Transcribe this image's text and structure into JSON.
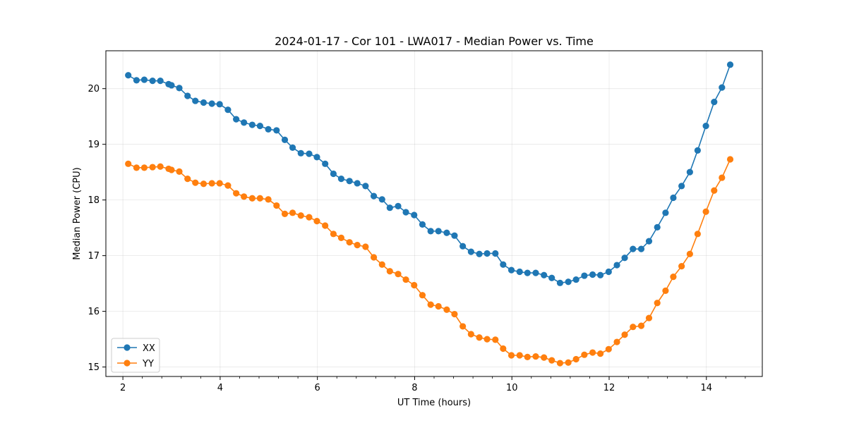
{
  "chart_data": {
    "type": "line",
    "title": "2024-01-17 - Cor 101 - LWA017 - Median Power vs. Time",
    "xlabel": "UT Time (hours)",
    "ylabel": "Median Power (CPU)",
    "xlim": [
      1.65,
      15.15
    ],
    "ylim": [
      14.83,
      20.68
    ],
    "xticks": [
      2,
      4,
      6,
      8,
      10,
      12,
      14
    ],
    "xtick_labels": [
      "2",
      "4",
      "6",
      "8",
      "10",
      "12",
      "14"
    ],
    "yticks": [
      15,
      16,
      17,
      18,
      19,
      20
    ],
    "ytick_labels": [
      "15",
      "16",
      "17",
      "18",
      "19",
      "20"
    ],
    "grid": true,
    "legend_position": "lower-left",
    "x": [
      2.11,
      2.28,
      2.44,
      2.61,
      2.77,
      2.94,
      3.0,
      3.16,
      3.33,
      3.49,
      3.66,
      3.83,
      3.99,
      4.16,
      4.33,
      4.49,
      4.66,
      4.82,
      4.99,
      5.16,
      5.33,
      5.49,
      5.66,
      5.83,
      5.99,
      6.16,
      6.33,
      6.49,
      6.66,
      6.82,
      6.99,
      7.16,
      7.33,
      7.49,
      7.66,
      7.82,
      7.99,
      8.16,
      8.33,
      8.49,
      8.66,
      8.82,
      8.99,
      9.16,
      9.33,
      9.49,
      9.66,
      9.82,
      9.99,
      10.16,
      10.32,
      10.49,
      10.66,
      10.82,
      10.99,
      11.16,
      11.32,
      11.49,
      11.66,
      11.82,
      11.99,
      12.16,
      12.32,
      12.49,
      12.66,
      12.82,
      12.99,
      13.16,
      13.32,
      13.49,
      13.66,
      13.82,
      13.99,
      14.16,
      14.32,
      14.49
    ],
    "series": [
      {
        "name": "XX",
        "color": "#1f77b4",
        "values": [
          20.24,
          20.15,
          20.16,
          20.14,
          20.14,
          20.08,
          20.06,
          20.01,
          19.87,
          19.78,
          19.75,
          19.73,
          19.72,
          19.62,
          19.45,
          19.39,
          19.35,
          19.33,
          19.27,
          19.25,
          19.08,
          18.94,
          18.84,
          18.83,
          18.77,
          18.65,
          18.47,
          18.38,
          18.34,
          18.3,
          18.25,
          18.07,
          18.01,
          17.86,
          17.89,
          17.78,
          17.73,
          17.56,
          17.44,
          17.44,
          17.41,
          17.36,
          17.17,
          17.07,
          17.03,
          17.04,
          17.04,
          16.84,
          16.74,
          16.71,
          16.69,
          16.69,
          16.65,
          16.6,
          16.51,
          16.53,
          16.57,
          16.64,
          16.66,
          16.65,
          16.71,
          16.83,
          16.96,
          17.12,
          17.12,
          17.26,
          17.51,
          17.77,
          18.04,
          18.25,
          18.5,
          18.89,
          19.33,
          19.76,
          20.02,
          20.43
        ]
      },
      {
        "name": "YY",
        "color": "#ff7f0e",
        "values": [
          18.65,
          18.58,
          18.58,
          18.59,
          18.6,
          18.56,
          18.54,
          18.51,
          18.38,
          18.31,
          18.29,
          18.3,
          18.3,
          18.26,
          18.12,
          18.06,
          18.03,
          18.03,
          18.01,
          17.9,
          17.75,
          17.77,
          17.72,
          17.69,
          17.62,
          17.54,
          17.39,
          17.32,
          17.24,
          17.19,
          17.16,
          16.97,
          16.84,
          16.72,
          16.67,
          16.57,
          16.47,
          16.29,
          16.12,
          16.09,
          16.03,
          15.95,
          15.73,
          15.59,
          15.53,
          15.5,
          15.49,
          15.33,
          15.21,
          15.21,
          15.18,
          15.19,
          15.17,
          15.12,
          15.07,
          15.08,
          15.14,
          15.22,
          15.26,
          15.24,
          15.32,
          15.45,
          15.58,
          15.72,
          15.74,
          15.88,
          16.15,
          16.37,
          16.62,
          16.81,
          17.03,
          17.39,
          17.79,
          18.17,
          18.4,
          18.73
        ]
      }
    ]
  }
}
